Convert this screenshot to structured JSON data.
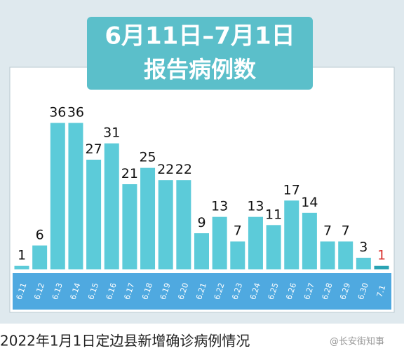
{
  "chart_data": {
    "type": "bar",
    "title": "6月11日–7月1日",
    "subtitle": "报告病例数",
    "categories": [
      "6.11",
      "6.12",
      "6.13",
      "6.14",
      "6.15",
      "6.16",
      "6.17",
      "6.18",
      "6.19",
      "6.20",
      "6.21",
      "6.22",
      "6.23",
      "6.24",
      "6.25",
      "6.26",
      "6.27",
      "6.28",
      "6.29",
      "6.30",
      "7.1"
    ],
    "values": [
      1,
      6,
      36,
      36,
      27,
      31,
      21,
      25,
      22,
      22,
      9,
      13,
      7,
      13,
      11,
      17,
      14,
      7,
      7,
      3,
      1
    ],
    "colors": [
      "#5ccbd9",
      "#5ccbd9",
      "#5ccbd9",
      "#5ccbd9",
      "#5ccbd9",
      "#5ccbd9",
      "#5ccbd9",
      "#5ccbd9",
      "#5ccbd9",
      "#5ccbd9",
      "#5ccbd9",
      "#5ccbd9",
      "#5ccbd9",
      "#5ccbd9",
      "#5ccbd9",
      "#5ccbd9",
      "#5ccbd9",
      "#5ccbd9",
      "#5ccbd9",
      "#5ccbd9",
      "#2aa3b3"
    ],
    "label_colors": [
      "#111",
      "#111",
      "#111",
      "#111",
      "#111",
      "#111",
      "#111",
      "#111",
      "#111",
      "#111",
      "#111",
      "#111",
      "#111",
      "#111",
      "#111",
      "#111",
      "#111",
      "#111",
      "#111",
      "#111",
      "#d9322f"
    ]
  },
  "caption": "2022年1月1日定边县新增确诊病例情况",
  "watermark": "@长安街知事"
}
